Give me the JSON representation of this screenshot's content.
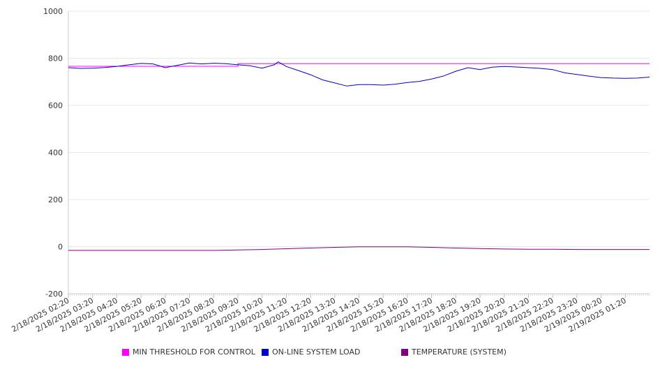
{
  "chart_data": {
    "type": "line",
    "title": "",
    "xlabel": "",
    "ylabel": "",
    "ylim": [
      -200,
      1000
    ],
    "y_ticks": [
      -200,
      0,
      200,
      400,
      600,
      800,
      1000
    ],
    "x_tick_labels": [
      "2/18/2025 02:20",
      "2/18/2025 03:20",
      "2/18/2025 04:20",
      "2/18/2025 05:20",
      "2/18/2025 06:20",
      "2/18/2025 07:20",
      "2/18/2025 08:20",
      "2/18/2025 09:20",
      "2/18/2025 10:20",
      "2/18/2025 11:20",
      "2/18/2025 12:20",
      "2/18/2025 13:20",
      "2/18/2025 14:20",
      "2/18/2025 15:20",
      "2/18/2025 16:20",
      "2/18/2025 17:20",
      "2/18/2025 18:20",
      "2/18/2025 19:20",
      "2/18/2025 20:20",
      "2/18/2025 21:20",
      "2/18/2025 22:20",
      "2/18/2025 23:20",
      "2/19/2025 00:20",
      "2/19/2025 01:20"
    ],
    "x_end": "2/19/2025 02:20",
    "grid": true,
    "legend_position": "bottom",
    "series": [
      {
        "name": "MIN THRESHOLD FOR CONTROL",
        "color": "#ff00ff",
        "x": [
          "2/18/2025 02:20",
          "2/18/2025 09:20",
          "2/18/2025 09:20",
          "2/19/2025 02:20"
        ],
        "values": [
          766,
          766,
          777,
          777
        ]
      },
      {
        "name": "ON-LINE SYSTEM LOAD",
        "color": "#0000cc",
        "x": [
          "2/18/2025 02:20",
          "2/18/2025 02:50",
          "2/18/2025 03:20",
          "2/18/2025 03:50",
          "2/18/2025 04:20",
          "2/18/2025 04:50",
          "2/18/2025 05:20",
          "2/18/2025 05:50",
          "2/18/2025 06:20",
          "2/18/2025 06:50",
          "2/18/2025 07:20",
          "2/18/2025 07:50",
          "2/18/2025 08:20",
          "2/18/2025 08:50",
          "2/18/2025 09:20",
          "2/18/2025 09:50",
          "2/18/2025 10:20",
          "2/18/2025 10:50",
          "2/18/2025 11:00",
          "2/18/2025 11:20",
          "2/18/2025 11:50",
          "2/18/2025 12:20",
          "2/18/2025 12:50",
          "2/18/2025 13:20",
          "2/18/2025 13:50",
          "2/18/2025 14:20",
          "2/18/2025 14:50",
          "2/18/2025 15:20",
          "2/18/2025 15:50",
          "2/18/2025 16:20",
          "2/18/2025 16:50",
          "2/18/2025 17:20",
          "2/18/2025 17:50",
          "2/18/2025 18:20",
          "2/18/2025 18:50",
          "2/18/2025 19:20",
          "2/18/2025 19:50",
          "2/18/2025 20:20",
          "2/18/2025 20:50",
          "2/18/2025 21:20",
          "2/18/2025 21:50",
          "2/18/2025 22:20",
          "2/18/2025 22:50",
          "2/18/2025 23:20",
          "2/18/2025 23:50",
          "2/19/2025 00:20",
          "2/19/2025 00:50",
          "2/19/2025 01:20",
          "2/19/2025 01:50",
          "2/19/2025 02:20"
        ],
        "values": [
          760,
          757,
          758,
          761,
          765,
          772,
          778,
          776,
          760,
          770,
          780,
          776,
          779,
          777,
          772,
          768,
          758,
          772,
          785,
          765,
          748,
          730,
          708,
          695,
          682,
          688,
          688,
          686,
          690,
          697,
          702,
          712,
          725,
          745,
          760,
          752,
          762,
          765,
          763,
          760,
          757,
          752,
          738,
          731,
          724,
          718,
          716,
          715,
          716,
          720
        ]
      },
      {
        "name": "TEMPERATURE (SYSTEM)",
        "color": "#800080",
        "x": [
          "2/18/2025 02:20",
          "2/18/2025 04:20",
          "2/18/2025 06:20",
          "2/18/2025 08:20",
          "2/18/2025 09:20",
          "2/18/2025 10:20",
          "2/18/2025 11:20",
          "2/18/2025 12:20",
          "2/18/2025 13:20",
          "2/18/2025 14:20",
          "2/18/2025 15:20",
          "2/18/2025 16:20",
          "2/18/2025 17:20",
          "2/18/2025 18:20",
          "2/18/2025 19:20",
          "2/18/2025 20:20",
          "2/18/2025 21:20",
          "2/18/2025 22:20",
          "2/18/2025 23:20",
          "2/19/2025 00:20",
          "2/19/2025 01:20",
          "2/19/2025 02:20"
        ],
        "values": [
          -16,
          -16,
          -16,
          -16,
          -14,
          -12,
          -9,
          -6,
          -3,
          -1,
          -1,
          -1,
          -3,
          -6,
          -8,
          -10,
          -11,
          -11,
          -12,
          -12,
          -12,
          -12
        ]
      }
    ]
  }
}
